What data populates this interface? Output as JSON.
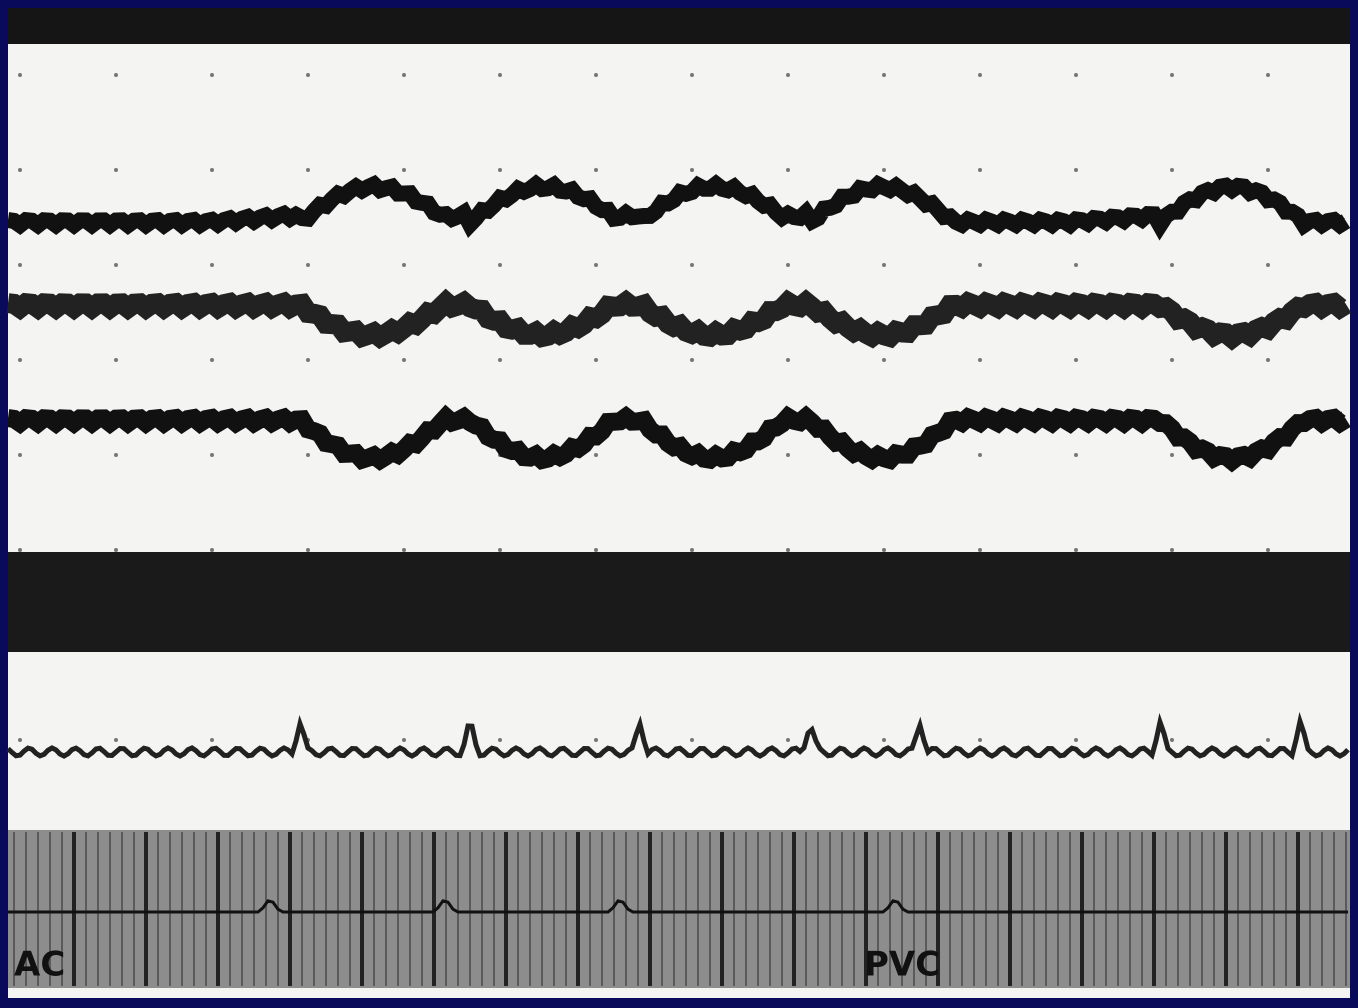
{
  "labels": [
    "AC",
    "PVC"
  ]
}
